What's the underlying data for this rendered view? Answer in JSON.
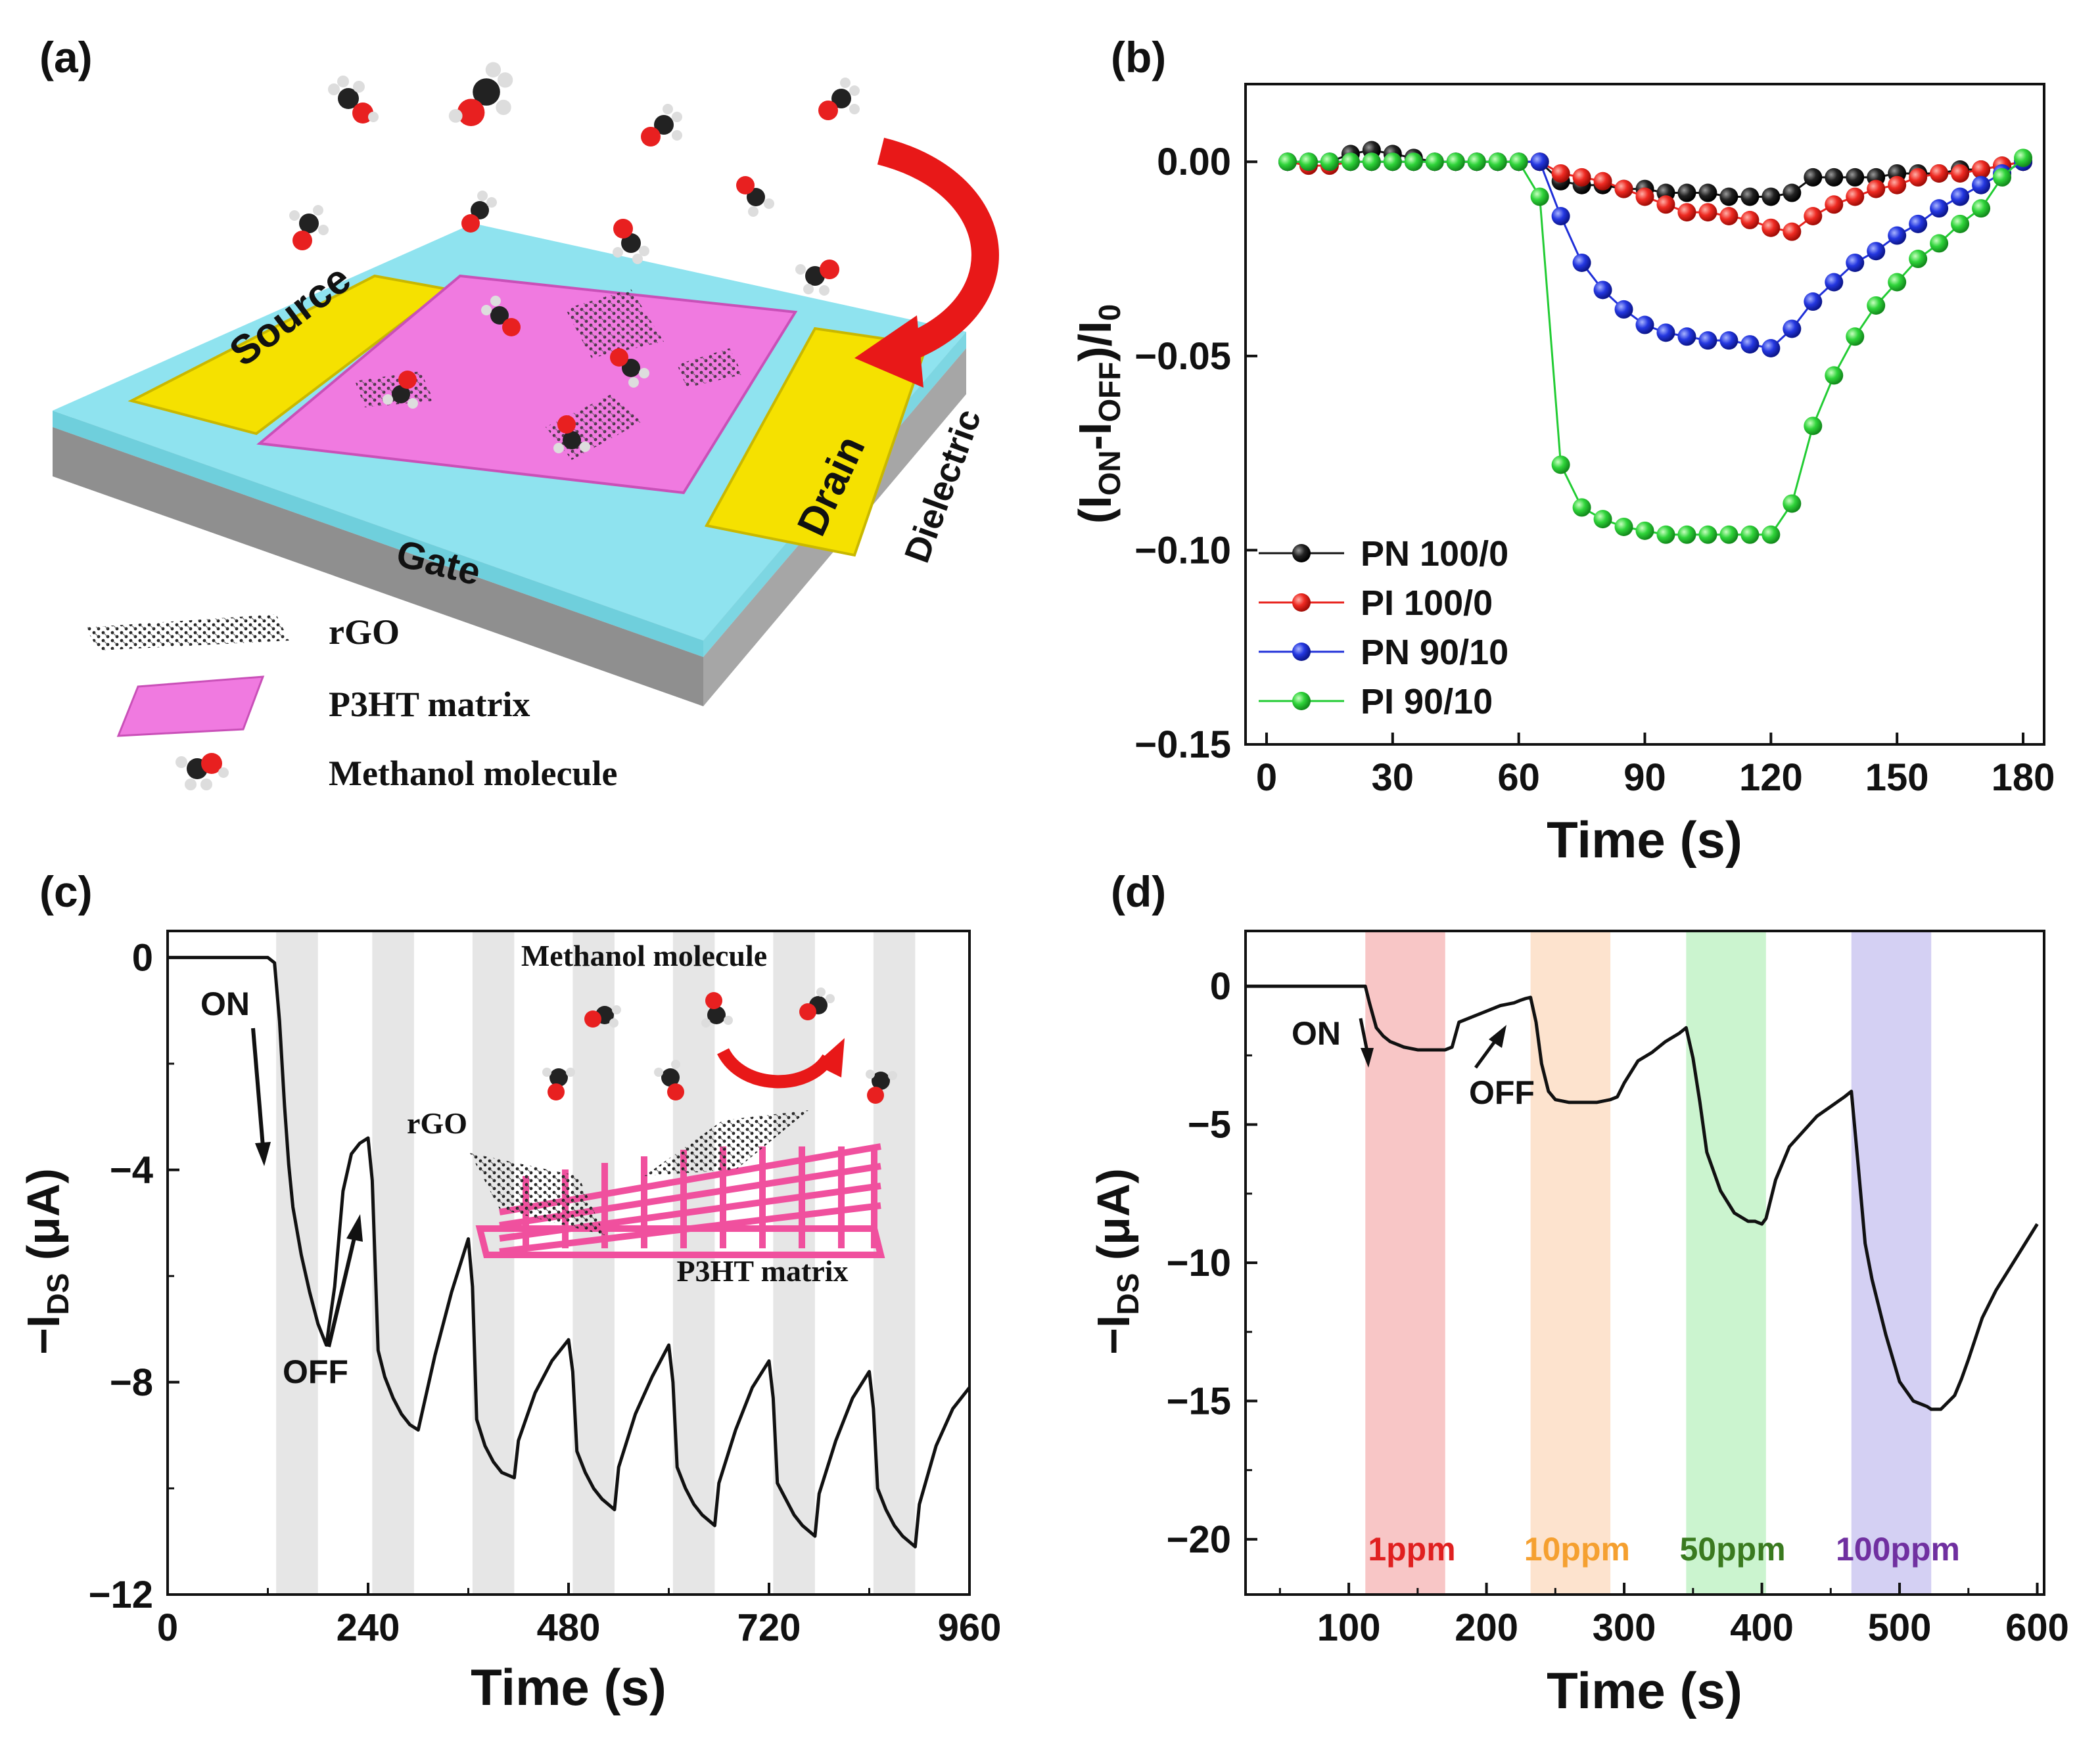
{
  "panel_labels": [
    "(a)",
    "(b)",
    "(c)",
    "(d)"
  ],
  "schematic": {
    "source": "Source",
    "drain": "Drain",
    "gate": "Gate",
    "dielectric": "Dielectric",
    "legend": [
      "rGO",
      "P3HT matrix",
      "Methanol molecule"
    ],
    "colors": {
      "electrode": "#f5e100",
      "p3ht": "#f07ae0",
      "dielectric": "#8fe3ef",
      "gate": "#b7b7b7"
    }
  },
  "chart_data": [
    {
      "id": "b",
      "type": "line",
      "xlabel": "Time (s)",
      "ylabel": "(I_ON-I_OFF)/I_0",
      "xlim": [
        -5,
        185
      ],
      "ylim": [
        -0.15,
        0.02
      ],
      "xticks": [
        0,
        30,
        60,
        90,
        120,
        150,
        180
      ],
      "xtick_labels": [
        "0",
        "30",
        "60",
        "90",
        "120",
        "150",
        "180"
      ],
      "yticks": [
        0.0,
        -0.05,
        -0.1,
        -0.15
      ],
      "ytick_labels": [
        "0.00",
        "−0.05",
        "−0.10",
        "−0.15"
      ],
      "legend_position": "bottom-left",
      "x": [
        5,
        10,
        15,
        20,
        25,
        30,
        35,
        40,
        45,
        50,
        55,
        60,
        65,
        70,
        75,
        80,
        85,
        90,
        95,
        100,
        105,
        110,
        115,
        120,
        125,
        130,
        135,
        140,
        145,
        150,
        155,
        160,
        165,
        170,
        175,
        180
      ],
      "series": [
        {
          "name": "PN 100/0",
          "color": "#111111",
          "values": [
            0,
            0,
            0,
            0.002,
            0.003,
            0.002,
            0.001,
            0,
            0,
            0,
            0,
            0,
            0,
            -0.005,
            -0.006,
            -0.006,
            -0.007,
            -0.007,
            -0.008,
            -0.008,
            -0.008,
            -0.009,
            -0.009,
            -0.009,
            -0.008,
            -0.004,
            -0.004,
            -0.004,
            -0.004,
            -0.003,
            -0.003,
            -0.003,
            -0.002,
            -0.002,
            -0.001,
            0
          ]
        },
        {
          "name": "PI 100/0",
          "color": "#e8231e",
          "values": [
            0,
            -0.001,
            -0.001,
            0,
            0,
            0,
            0,
            0,
            0,
            0,
            0,
            0,
            0,
            -0.003,
            -0.004,
            -0.005,
            -0.007,
            -0.009,
            -0.011,
            -0.013,
            -0.013,
            -0.014,
            -0.015,
            -0.017,
            -0.018,
            -0.014,
            -0.011,
            -0.009,
            -0.007,
            -0.006,
            -0.004,
            -0.003,
            -0.003,
            -0.002,
            -0.001,
            0
          ]
        },
        {
          "name": "PN 90/10",
          "color": "#1f2fd8",
          "values": [
            0,
            0,
            0,
            0,
            0,
            0,
            0,
            0,
            0,
            0,
            0,
            0,
            0,
            -0.014,
            -0.026,
            -0.033,
            -0.038,
            -0.042,
            -0.044,
            -0.045,
            -0.046,
            -0.046,
            -0.047,
            -0.048,
            -0.043,
            -0.036,
            -0.031,
            -0.026,
            -0.023,
            -0.019,
            -0.016,
            -0.012,
            -0.009,
            -0.006,
            -0.003,
            0
          ]
        },
        {
          "name": "PI 90/10",
          "color": "#22cc33",
          "values": [
            0,
            0,
            0,
            0,
            0,
            0,
            0,
            0,
            0,
            0,
            0,
            0,
            -0.009,
            -0.078,
            -0.089,
            -0.092,
            -0.094,
            -0.095,
            -0.096,
            -0.096,
            -0.096,
            -0.096,
            -0.096,
            -0.096,
            -0.088,
            -0.068,
            -0.055,
            -0.045,
            -0.037,
            -0.031,
            -0.025,
            -0.021,
            -0.016,
            -0.012,
            -0.004,
            0.001
          ]
        }
      ]
    },
    {
      "id": "c",
      "type": "line",
      "xlabel": "Time (s)",
      "ylabel": "-I_DS (μA)",
      "xlim": [
        0,
        960
      ],
      "ylim": [
        -12,
        0.5
      ],
      "xticks": [
        0,
        240,
        480,
        720,
        960
      ],
      "xtick_labels": [
        "0",
        "240",
        "480",
        "720",
        "960"
      ],
      "yticks": [
        0,
        -4,
        -8,
        -12
      ],
      "ytick_labels": [
        "0",
        "−4",
        "−8",
        "−12"
      ],
      "shaded_intervals": [
        [
          130,
          180
        ],
        [
          245,
          295
        ],
        [
          365,
          415
        ],
        [
          485,
          535
        ],
        [
          605,
          655
        ],
        [
          725,
          775
        ],
        [
          845,
          895
        ]
      ],
      "annotations": [
        "ON",
        "OFF"
      ],
      "inset_labels": [
        "Methanol molecule",
        "rGO",
        "P3HT matrix"
      ],
      "series": [
        {
          "name": "-I_DS",
          "color": "#111111",
          "x": [
            0,
            60,
            120,
            128,
            134,
            140,
            145,
            150,
            160,
            170,
            180,
            190,
            200,
            210,
            220,
            230,
            240,
            245,
            252,
            260,
            270,
            280,
            290,
            300,
            320,
            340,
            360,
            365,
            370,
            380,
            390,
            400,
            415,
            420,
            440,
            460,
            480,
            485,
            490,
            500,
            510,
            520,
            535,
            540,
            560,
            580,
            600,
            605,
            610,
            620,
            630,
            640,
            655,
            660,
            680,
            700,
            720,
            725,
            730,
            740,
            750,
            760,
            775,
            780,
            800,
            820,
            840,
            845,
            850,
            860,
            870,
            880,
            895,
            900,
            920,
            940,
            960
          ],
          "y": [
            0,
            0,
            0,
            -0.1,
            -1.2,
            -2.8,
            -3.9,
            -4.7,
            -5.6,
            -6.3,
            -6.9,
            -7.3,
            -6.2,
            -4.4,
            -3.7,
            -3.5,
            -3.4,
            -4.2,
            -7.4,
            -7.9,
            -8.3,
            -8.6,
            -8.8,
            -8.9,
            -7.5,
            -6.3,
            -5.3,
            -6.2,
            -8.7,
            -9.2,
            -9.5,
            -9.7,
            -9.8,
            -9.1,
            -8.2,
            -7.6,
            -7.2,
            -7.8,
            -9.3,
            -9.7,
            -10.0,
            -10.2,
            -10.4,
            -9.6,
            -8.6,
            -7.9,
            -7.3,
            -8.0,
            -9.6,
            -10.0,
            -10.3,
            -10.5,
            -10.7,
            -9.9,
            -8.9,
            -8.1,
            -7.6,
            -8.3,
            -9.9,
            -10.2,
            -10.5,
            -10.7,
            -10.9,
            -10.1,
            -9.1,
            -8.3,
            -7.8,
            -8.5,
            -10.0,
            -10.4,
            -10.7,
            -10.9,
            -11.1,
            -10.3,
            -9.2,
            -8.5,
            -8.1
          ]
        }
      ]
    },
    {
      "id": "d",
      "type": "line",
      "xlabel": "Time (s)",
      "ylabel": "-I_DS (μA)",
      "xlim": [
        25,
        605
      ],
      "ylim": [
        -22,
        2
      ],
      "xticks": [
        100,
        200,
        300,
        400,
        500,
        600
      ],
      "xtick_labels": [
        "100",
        "200",
        "300",
        "400",
        "500",
        "600"
      ],
      "yticks": [
        0,
        -5,
        -10,
        -15,
        -20
      ],
      "ytick_labels": [
        "0",
        "−5",
        "−10",
        "−15",
        "−20"
      ],
      "annotations": [
        "ON",
        "OFF"
      ],
      "shaded_intervals": [
        {
          "label": "1ppm",
          "range": [
            112,
            170
          ],
          "color": "#f6b3b3",
          "label_color": "#e02020"
        },
        {
          "label": "10ppm",
          "range": [
            232,
            290
          ],
          "color": "#fcd9bd",
          "label_color": "#f5a030"
        },
        {
          "label": "50ppm",
          "range": [
            345,
            403
          ],
          "color": "#b9f0bf",
          "label_color": "#3a7a1f"
        },
        {
          "label": "100ppm",
          "range": [
            465,
            523
          ],
          "color": "#c6c0ef",
          "label_color": "#7030a0"
        }
      ],
      "series": [
        {
          "name": "-I_DS",
          "color": "#111111",
          "x": [
            25,
            60,
            100,
            112,
            115,
            120,
            125,
            130,
            140,
            150,
            160,
            170,
            175,
            180,
            190,
            200,
            210,
            220,
            225,
            228,
            232,
            236,
            240,
            245,
            250,
            260,
            270,
            280,
            290,
            295,
            300,
            310,
            320,
            330,
            340,
            345,
            350,
            355,
            360,
            370,
            380,
            390,
            395,
            400,
            403,
            410,
            420,
            440,
            460,
            465,
            470,
            475,
            480,
            490,
            500,
            510,
            515,
            520,
            523,
            530,
            540,
            545,
            550,
            560,
            570,
            580,
            590,
            600
          ],
          "y": [
            0,
            0,
            0,
            0,
            -0.6,
            -1.5,
            -1.8,
            -2.0,
            -2.2,
            -2.3,
            -2.3,
            -2.3,
            -2.2,
            -1.3,
            -1.1,
            -0.9,
            -0.7,
            -0.6,
            -0.5,
            -0.45,
            -0.4,
            -1.3,
            -2.8,
            -3.8,
            -4.1,
            -4.2,
            -4.2,
            -4.2,
            -4.1,
            -4.0,
            -3.5,
            -2.7,
            -2.4,
            -2.0,
            -1.7,
            -1.5,
            -2.6,
            -4.2,
            -6.0,
            -7.4,
            -8.2,
            -8.5,
            -8.5,
            -8.6,
            -8.4,
            -7.0,
            -5.8,
            -4.7,
            -4.0,
            -3.8,
            -6.5,
            -9.3,
            -10.6,
            -12.6,
            -14.3,
            -15.0,
            -15.1,
            -15.2,
            -15.3,
            -15.3,
            -14.8,
            -14.2,
            -13.5,
            -12.0,
            -11.0,
            -10.2,
            -9.4,
            -8.6
          ]
        }
      ]
    }
  ]
}
